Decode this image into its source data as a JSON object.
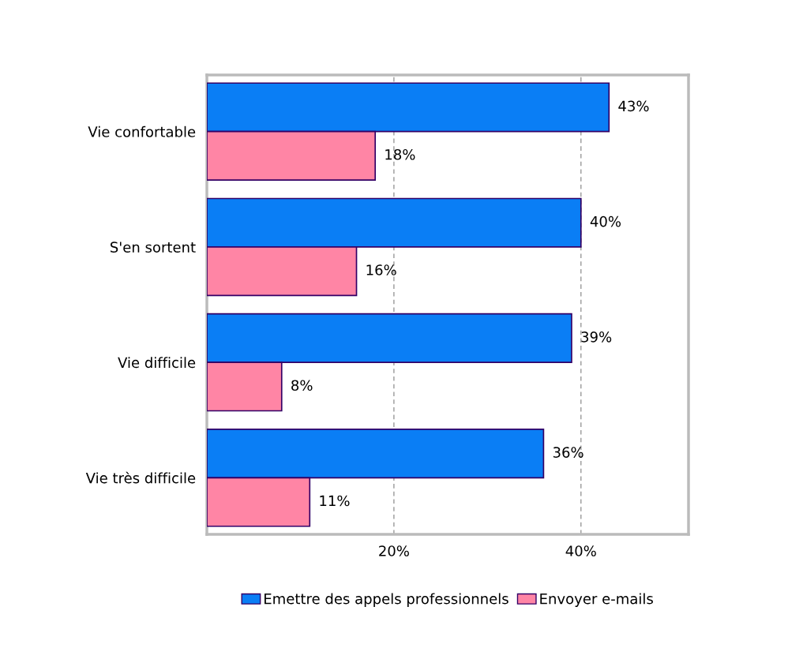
{
  "chart_data": {
    "type": "bar",
    "orientation": "horizontal",
    "categories": [
      "Vie confortable",
      "S'en sortent",
      "Vie difficile",
      "Vie très difficile"
    ],
    "series": [
      {
        "name": "Emettre des appels professionnels",
        "color": "#0a7ef5",
        "values": [
          43,
          40,
          39,
          36
        ],
        "value_labels": [
          "43%",
          "40%",
          "39%",
          "36%"
        ]
      },
      {
        "name": "Envoyer e-mails",
        "color": "#ff85a5",
        "values": [
          18,
          16,
          8,
          11
        ],
        "value_labels": [
          "18%",
          "16%",
          "8%",
          "11%"
        ]
      }
    ],
    "xlim": [
      0,
      51.5
    ],
    "xticks": [
      {
        "value": 20,
        "label": "20%"
      },
      {
        "value": 40,
        "label": "40%"
      }
    ],
    "grid": "x",
    "legend": "bottom"
  }
}
